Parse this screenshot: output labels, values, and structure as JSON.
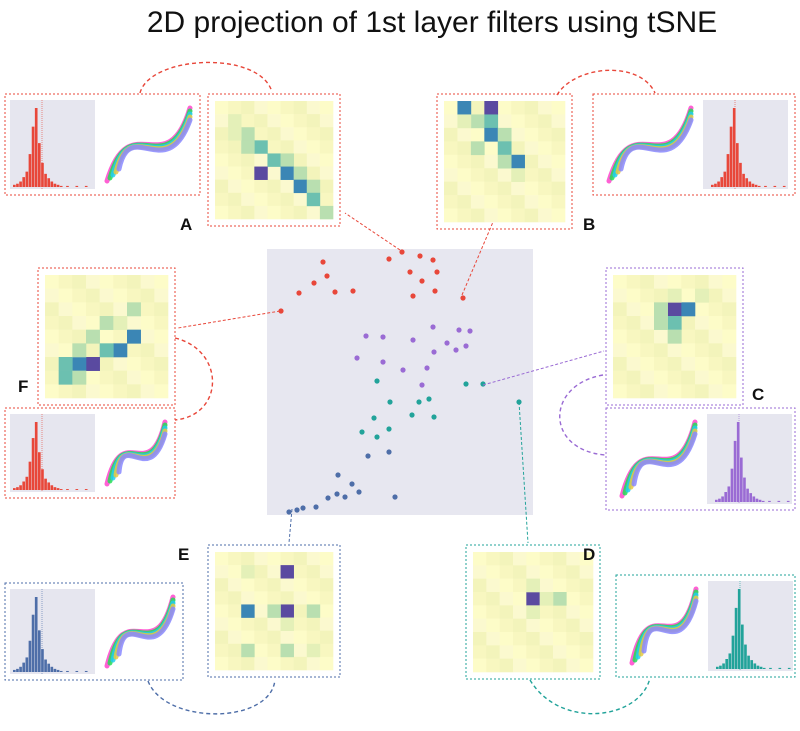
{
  "title": "2D projection of 1st layer filters using tSNE",
  "panels": [
    {
      "label": "A"
    },
    {
      "label": "B"
    },
    {
      "label": "C"
    },
    {
      "label": "D"
    },
    {
      "label": "E"
    },
    {
      "label": "F"
    }
  ]
}
